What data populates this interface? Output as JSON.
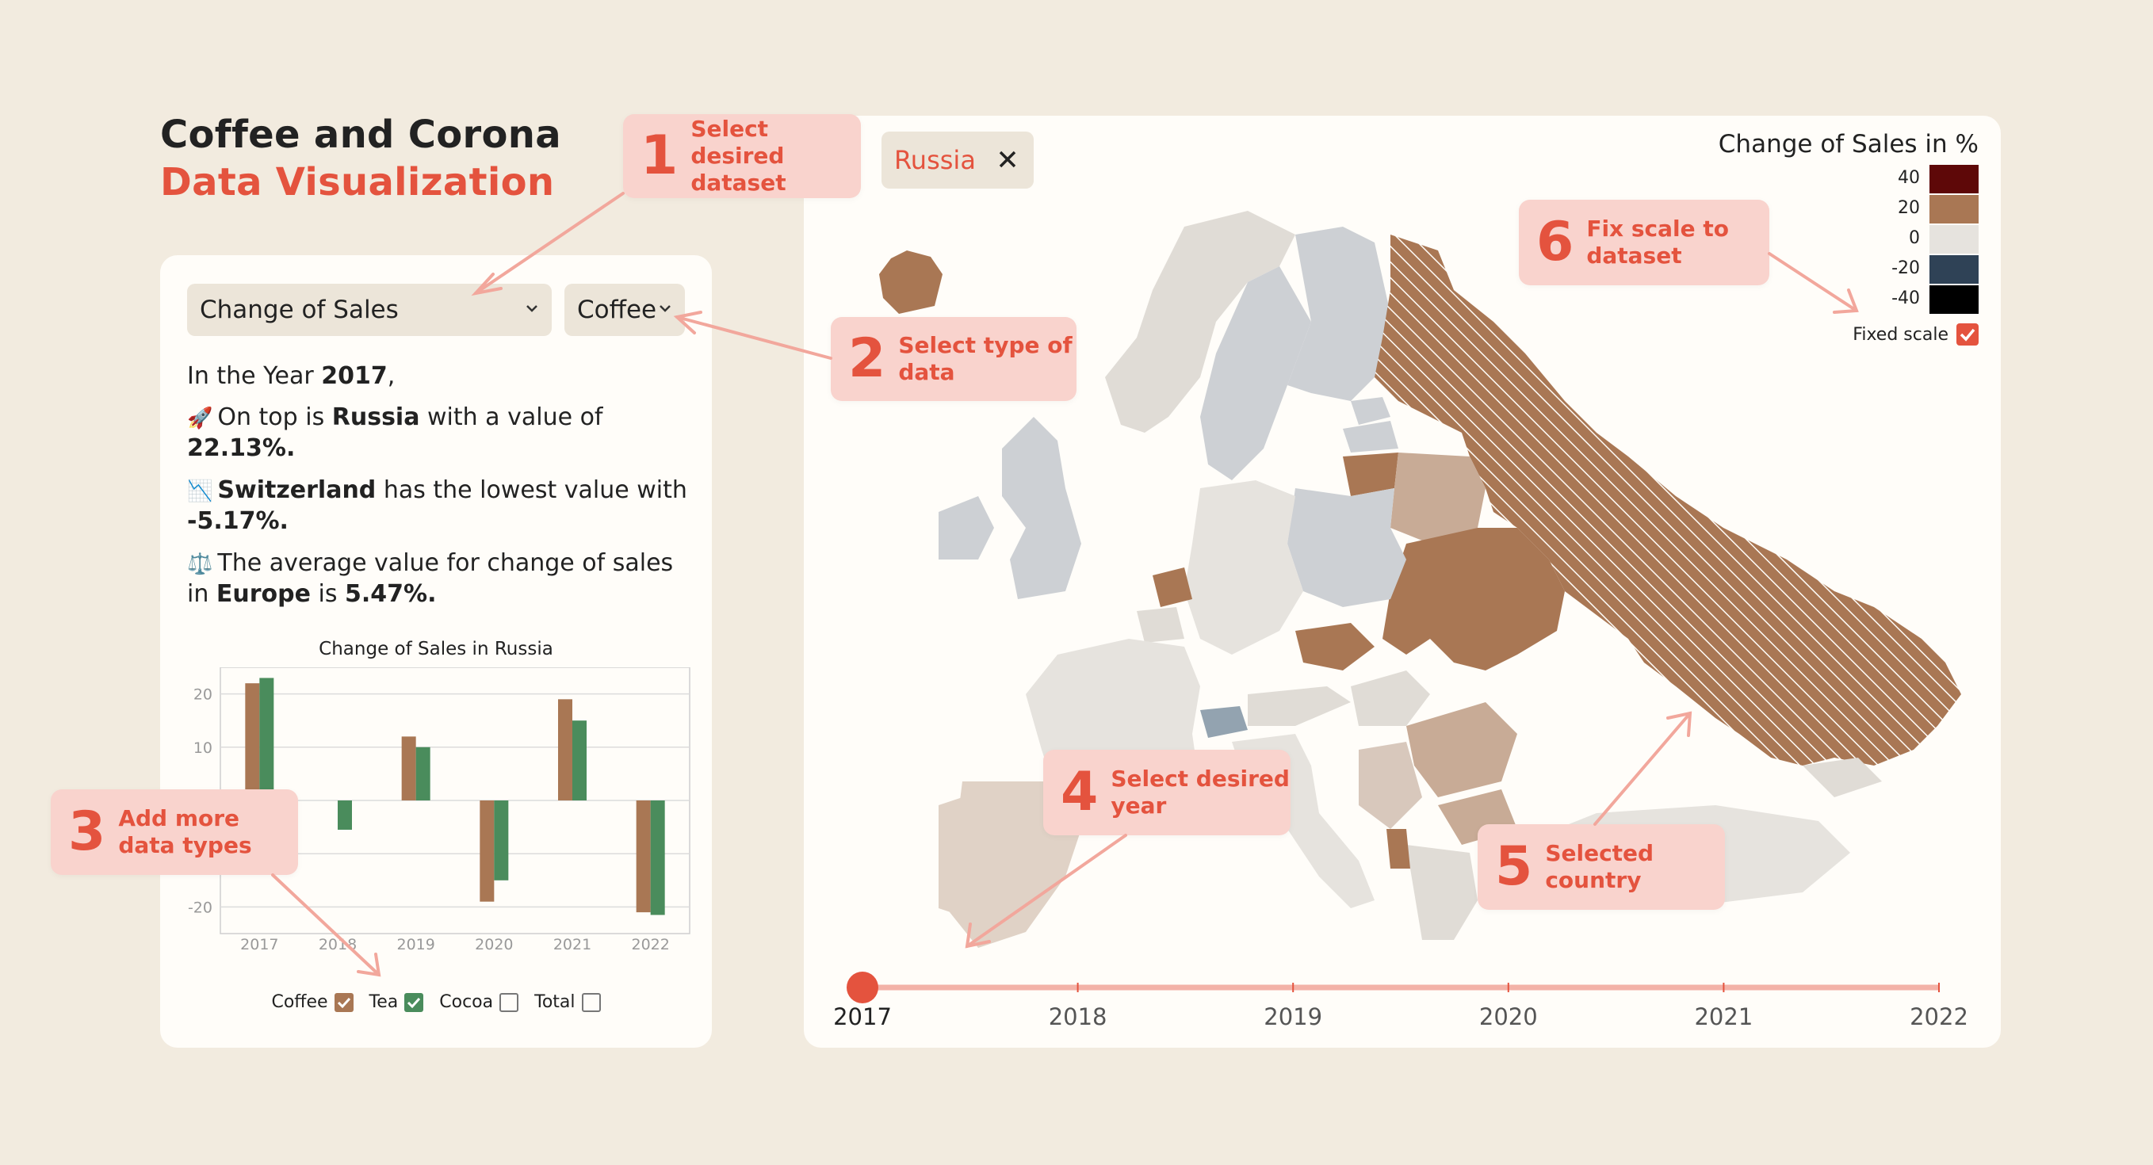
{
  "header": {
    "title_line1": "Coffee and Corona",
    "title_line2": "Data Visualization"
  },
  "controls": {
    "dataset_select": {
      "value": "Change of Sales"
    },
    "type_select": {
      "value": "Coffee"
    }
  },
  "story": {
    "year_prefix": "In the Year ",
    "year": "2017",
    "year_suffix": ",",
    "top_emoji": "🚀",
    "top_prefix": "On top is ",
    "top_country": "Russia",
    "top_middle": " with a value of ",
    "top_value": "22.13%.",
    "low_emoji": "📉",
    "low_country": "Switzerland",
    "low_middle": " has the lowest value with ",
    "low_value": "-5.17%.",
    "avg_emoji": "⚖️",
    "avg_prefix": "The average value for change of sales in ",
    "avg_region": "Europe",
    "avg_middle": " is ",
    "avg_value": "5.47%."
  },
  "chart_data": {
    "type": "bar",
    "title": "Change of Sales in Russia",
    "categories": [
      "2017",
      "2018",
      "2019",
      "2020",
      "2021",
      "2022"
    ],
    "series": [
      {
        "name": "Coffee",
        "color": "#a97754",
        "values": [
          22,
          0,
          12,
          -19,
          19,
          -21
        ]
      },
      {
        "name": "Tea",
        "color": "#4a8c5c",
        "values": [
          23,
          -5.5,
          10,
          -15,
          15,
          -21.5
        ]
      }
    ],
    "yticks": [
      20,
      10,
      -20
    ],
    "ylim": [
      -25,
      25
    ],
    "grid": true
  },
  "legend_checkboxes": [
    {
      "label": "Coffee",
      "checked": true,
      "color": "#a97754"
    },
    {
      "label": "Tea",
      "checked": true,
      "color": "#4a8c5c"
    },
    {
      "label": "Cocoa",
      "checked": false,
      "color": "#777777"
    },
    {
      "label": "Total",
      "checked": false,
      "color": "#777777"
    }
  ],
  "map": {
    "selected_country": "Russia",
    "legend_title": "Change of Sales in %",
    "scale": [
      {
        "label": "40",
        "color": "#5e0808"
      },
      {
        "label": "20",
        "color": "#a97754"
      },
      {
        "label": "0",
        "color": "#e6e3de"
      },
      {
        "label": "-20",
        "color": "#2f4256"
      },
      {
        "label": "-40",
        "color": "#000000"
      }
    ],
    "fixed_scale_label": "Fixed scale",
    "fixed_scale_checked": true
  },
  "timeline": {
    "years": [
      "2017",
      "2018",
      "2019",
      "2020",
      "2021",
      "2022"
    ],
    "selected": "2017"
  },
  "callouts": [
    {
      "num": "1",
      "text": "Select desired dataset"
    },
    {
      "num": "2",
      "text": "Select type of data"
    },
    {
      "num": "3",
      "text": "Add more data types"
    },
    {
      "num": "4",
      "text": "Select desired year"
    },
    {
      "num": "5",
      "text": "Selected country"
    },
    {
      "num": "6",
      "text": "Fix scale to dataset"
    }
  ],
  "colors": {
    "accent": "#e4533e",
    "callout_bg": "#f9d3cd",
    "background": "#f2ebdf"
  }
}
